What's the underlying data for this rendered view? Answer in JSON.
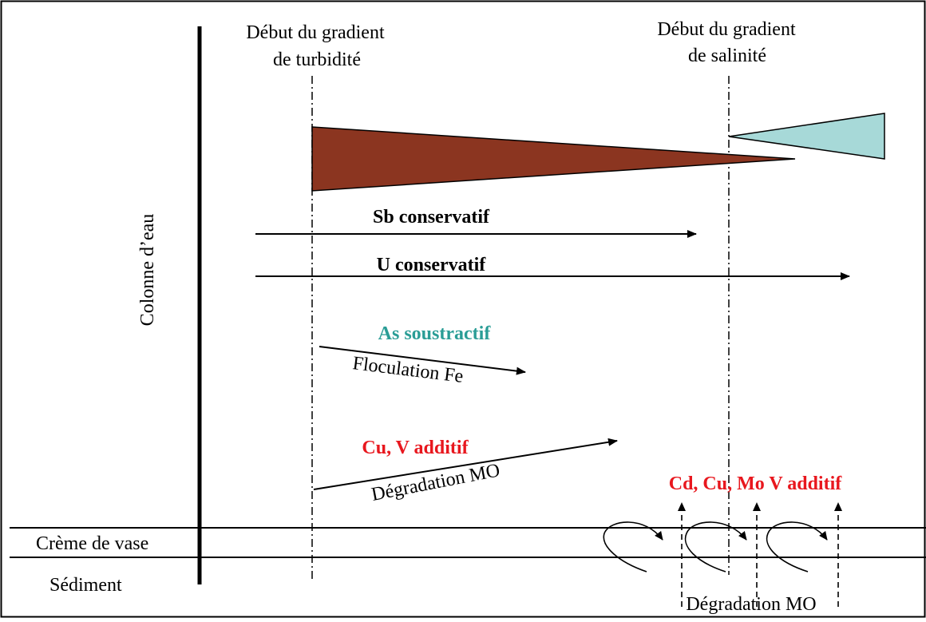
{
  "gradients": {
    "turbidity_line1": "Début du gradient",
    "turbidity_line2": "de turbidité",
    "salinity_line1": "Début du gradient",
    "salinity_line2": "de salinité",
    "turbidity_color": "#8B3520",
    "salinity_color": "#A7D9D8"
  },
  "axis_label": "Colonne d’eau",
  "layers": {
    "cream": "Crème de vase",
    "sediment": "Sédiment"
  },
  "behaviors": {
    "sb": {
      "label": "Sb conservatif",
      "color": "#000000"
    },
    "u": {
      "label": "U conservatif",
      "color": "#000000"
    },
    "as": {
      "label": "As soustractif",
      "color": "#2A9D96",
      "process": "Floculation Fe"
    },
    "cu_v": {
      "label": "Cu, V additif",
      "color": "#E8171E",
      "process": "Dégradation MO"
    }
  },
  "sediment_release": {
    "label": "Cd, Cu, Mo V additif",
    "color": "#E8171E",
    "process": "Dégradation MO"
  }
}
